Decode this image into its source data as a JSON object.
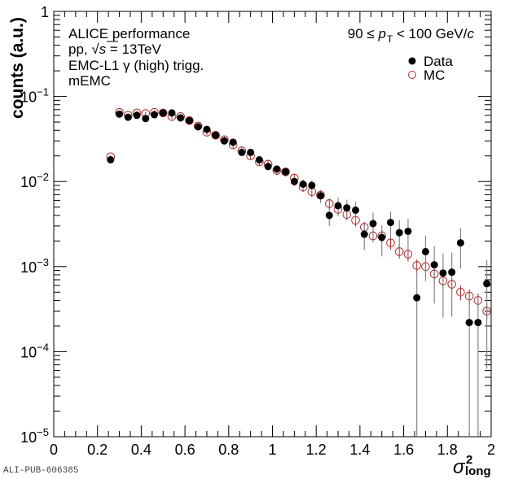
{
  "chart_data": {
    "type": "scatter",
    "title": "",
    "xlabel": "σ²_long",
    "xlabel_base": "σ",
    "xlabel_sup": "2",
    "xlabel_sub": "long",
    "ylabel": "counts (a.u.)",
    "xlim": [
      0,
      2
    ],
    "ylim": [
      1e-05,
      1
    ],
    "yscale": "log",
    "grid": false,
    "x_ticks": [
      "0",
      "0.2",
      "0.4",
      "0.6",
      "0.8",
      "1",
      "1.2",
      "1.4",
      "1.6",
      "1.8",
      "2"
    ],
    "y_ticks": [
      {
        "base": "1",
        "exp": ""
      },
      {
        "base": "10",
        "exp": "−1"
      },
      {
        "base": "10",
        "exp": "−2"
      },
      {
        "base": "10",
        "exp": "−3"
      },
      {
        "base": "10",
        "exp": "−4"
      },
      {
        "base": "10",
        "exp": "−5"
      }
    ],
    "legend_position": "top-right",
    "annotations": {
      "line1": "ALICE performance",
      "line2_prefix": "pp, ",
      "line2_sqrt": "√",
      "line2_s": "s",
      "line2_suffix": " = 13TeV",
      "line3": "EMC-L1 γ (high) trigg.",
      "line4": "mEMC",
      "pt_prefix": "90 ≤ ",
      "pt_p": "p",
      "pt_sub": "T",
      "pt_suffix": " < 100 GeV/",
      "pt_c": "c"
    },
    "x": [
      0.26,
      0.3,
      0.34,
      0.38,
      0.42,
      0.46,
      0.5,
      0.54,
      0.58,
      0.62,
      0.66,
      0.7,
      0.74,
      0.78,
      0.82,
      0.86,
      0.9,
      0.94,
      0.98,
      1.02,
      1.06,
      1.1,
      1.14,
      1.18,
      1.22,
      1.26,
      1.3,
      1.34,
      1.38,
      1.42,
      1.46,
      1.5,
      1.54,
      1.58,
      1.62,
      1.66,
      1.7,
      1.74,
      1.78,
      1.82,
      1.86,
      1.9,
      1.94,
      1.98
    ],
    "series": [
      {
        "name": "Data",
        "marker": "filled-circle",
        "color": "#000000",
        "values": [
          0.018,
          0.062,
          0.057,
          0.06,
          0.055,
          0.061,
          0.064,
          0.064,
          0.056,
          0.052,
          0.044,
          0.041,
          0.035,
          0.03,
          0.029,
          0.022,
          0.022,
          0.018,
          0.015,
          0.014,
          0.013,
          0.01,
          0.0093,
          0.009,
          0.0068,
          0.004,
          0.0052,
          0.0049,
          0.0046,
          0.0024,
          0.0032,
          0.0022,
          0.0033,
          0.0025,
          0.0026,
          0.00043,
          0.0015,
          0.00105,
          0.00084,
          0.00086,
          0.0019,
          0.00022,
          0.00022,
          0.00063
        ],
        "err_rel": [
          0.05,
          0.03,
          0.03,
          0.03,
          0.03,
          0.03,
          0.03,
          0.03,
          0.03,
          0.03,
          0.03,
          0.04,
          0.04,
          0.05,
          0.05,
          0.06,
          0.06,
          0.07,
          0.08,
          0.09,
          0.1,
          0.12,
          0.14,
          0.15,
          0.18,
          0.25,
          0.25,
          0.25,
          0.27,
          0.35,
          0.35,
          0.4,
          0.35,
          0.4,
          0.4,
          1.0,
          0.55,
          0.65,
          0.7,
          0.7,
          0.5,
          1.0,
          1.0,
          0.9
        ]
      },
      {
        "name": "MC",
        "marker": "open-circle",
        "color": "#a83232",
        "values": [
          0.0195,
          0.065,
          0.06,
          0.064,
          0.063,
          0.065,
          0.064,
          0.058,
          0.058,
          0.052,
          0.045,
          0.038,
          0.035,
          0.031,
          0.027,
          0.023,
          0.02,
          0.017,
          0.016,
          0.0135,
          0.013,
          0.011,
          0.0086,
          0.0076,
          0.0069,
          0.0055,
          0.0047,
          0.0041,
          0.0035,
          0.0029,
          0.0023,
          0.0023,
          0.0019,
          0.0015,
          0.0014,
          0.00103,
          0.001,
          0.00082,
          0.00068,
          0.00062,
          0.0005,
          0.00045,
          0.0004,
          0.0003
        ]
      }
    ]
  },
  "footer": {
    "reference_id": "ALI-PUB-606385"
  }
}
